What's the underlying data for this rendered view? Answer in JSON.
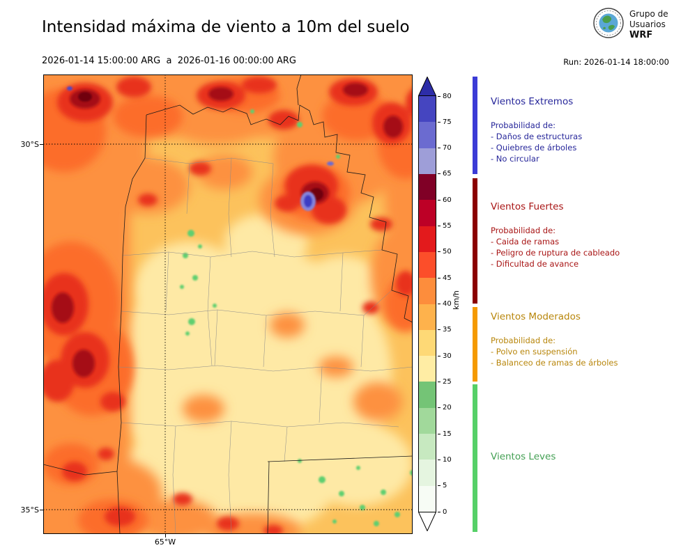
{
  "header": {
    "title": "Intensidad máxima de viento a 10m del suelo",
    "period": "2026-01-14 15:00:00 ARG  a  2026-01-16 00:00:00 ARG",
    "run_label": "Run: 2026-01-14 18:00:00",
    "logo": {
      "line1": "Grupo de",
      "line2": "Usuarios",
      "line3": "WRF"
    }
  },
  "map": {
    "lat_ticks": [
      "30°S",
      "35°S"
    ],
    "lon_ticks": [
      "65°W"
    ]
  },
  "colorbar": {
    "unit": "km/h",
    "ticks": [
      "0",
      "5",
      "10",
      "15",
      "20",
      "25",
      "30",
      "35",
      "40",
      "45",
      "50",
      "55",
      "60",
      "65",
      "70",
      "75",
      "80"
    ],
    "segments": [
      {
        "range": "0-5",
        "color": "#f7fcf5"
      },
      {
        "range": "5-10",
        "color": "#e5f5e0"
      },
      {
        "range": "10-15",
        "color": "#c7e9c0"
      },
      {
        "range": "15-20",
        "color": "#a1d99b"
      },
      {
        "range": "20-25",
        "color": "#74c476"
      },
      {
        "range": "25-30",
        "color": "#ffeda4"
      },
      {
        "range": "30-35",
        "color": "#fed976"
      },
      {
        "range": "35-40",
        "color": "#feb24c"
      },
      {
        "range": "40-45",
        "color": "#fd8d3c"
      },
      {
        "range": "45-50",
        "color": "#fc4e2a"
      },
      {
        "range": "50-55",
        "color": "#e31a1c"
      },
      {
        "range": "55-60",
        "color": "#bd0026"
      },
      {
        "range": "60-65",
        "color": "#800026"
      },
      {
        "range": "65-70",
        "color": "#9e9ed8"
      },
      {
        "range": "70-75",
        "color": "#6b6bd0"
      },
      {
        "range": "75-80",
        "color": "#4545c0"
      }
    ],
    "over_color": "#2d2da8",
    "under_color": "#ffffff"
  },
  "legend": {
    "sections": [
      {
        "title": "Vientos Extremos",
        "color": "#26269a",
        "bar_color": "#3b3bd6",
        "prob_label": "Probabilidad de:",
        "items": [
          "- Daños de estructuras",
          "- Quiebres de árboles",
          "- No circular"
        ]
      },
      {
        "title": "Vientos Fuertes",
        "color": "#a81414",
        "bar_color": "#8b0000",
        "prob_label": "Probabilidad de:",
        "items": [
          "- Caida de ramas",
          "- Peligro de ruptura de cableado",
          "- Dificultad de avance"
        ]
      },
      {
        "title": "Vientos Moderados",
        "color": "#b8860b",
        "bar_color": "#f59a00",
        "prob_label": "Probabilidad de:",
        "items": [
          "- Polvo en suspensión",
          "- Balanceo de ramas de árboles"
        ]
      },
      {
        "title": "Vientos Leves",
        "color": "#44a054",
        "bar_color": "#56d068",
        "prob_label": "",
        "items": []
      }
    ]
  }
}
